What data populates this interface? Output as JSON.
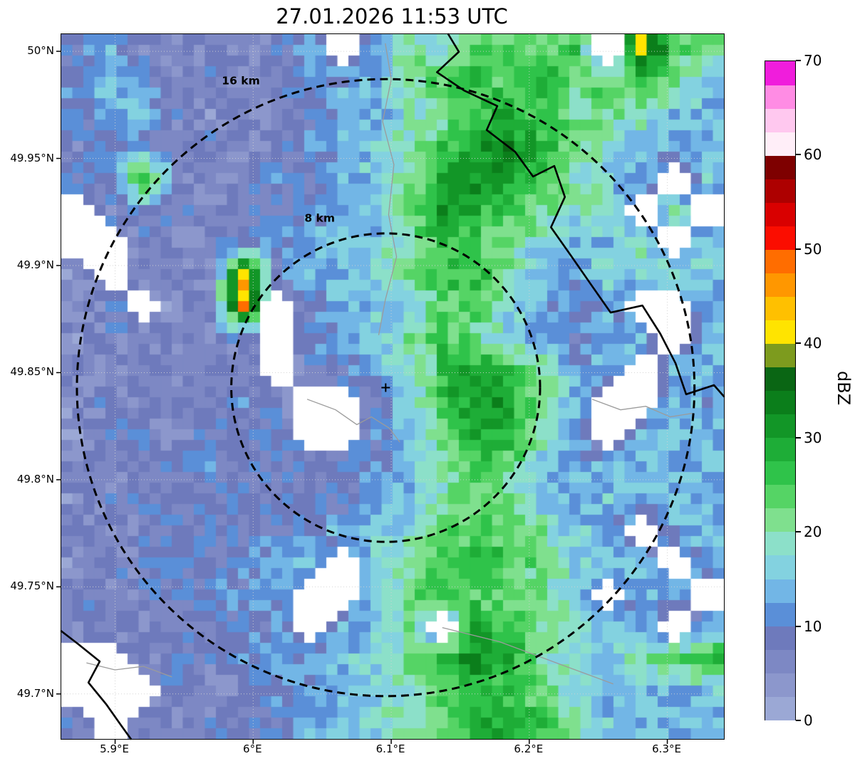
{
  "chart_data": {
    "type": "heatmap",
    "title": "27.01.2026 11:53 UTC",
    "units": "dBZ",
    "axes": {
      "lon_min": 5.861,
      "lon_max": 6.341,
      "lat_min": 49.679,
      "lat_max": 50.008,
      "x_ticks": [
        {
          "value": 5.9,
          "label": "5.9°E"
        },
        {
          "value": 6.0,
          "label": "6°E"
        },
        {
          "value": 6.1,
          "label": "6.1°E"
        },
        {
          "value": 6.2,
          "label": "6.2°E"
        },
        {
          "value": 6.3,
          "label": "6.3°E"
        }
      ],
      "y_ticks": [
        {
          "value": 50.0,
          "label": "50°N"
        },
        {
          "value": 49.95,
          "label": "49.95°N"
        },
        {
          "value": 49.9,
          "label": "49.9°N"
        },
        {
          "value": 49.85,
          "label": "49.85°N"
        },
        {
          "value": 49.8,
          "label": "49.8°N"
        },
        {
          "value": 49.75,
          "label": "49.75°N"
        },
        {
          "value": 49.7,
          "label": "49.7°N"
        }
      ]
    },
    "colorbar": {
      "label": "dBZ",
      "min": 0,
      "max": 70,
      "levels_step": 2.5,
      "tick_values": [
        0,
        10,
        20,
        30,
        40,
        50,
        60,
        70
      ],
      "tick_labels": [
        "0",
        "10",
        "20",
        "30",
        "40",
        "50",
        "60",
        "70"
      ],
      "colors": [
        "#9ba8d5",
        "#8c97cc",
        "#7d88c4",
        "#6e7abc",
        "#5a8fd8",
        "#72b6e6",
        "#83d2e0",
        "#8ce0c9",
        "#7fe08e",
        "#55d465",
        "#2fc34a",
        "#1ead37",
        "#129627",
        "#0b7e1b",
        "#0a6614",
        "#7d9b1e",
        "#ffe400",
        "#ffc000",
        "#ff9700",
        "#ff6d00",
        "#fb0d00",
        "#d90000",
        "#ad0000",
        "#7e0000",
        "#ffeef8",
        "#ffc8ef",
        "#ff8ce4",
        "#f01ddc"
      ],
      "no_data_color": "#ffffff"
    },
    "range_rings": {
      "center_lon": 6.096,
      "center_lat": 49.843,
      "center_marker": "+",
      "rings": [
        {
          "radius_km": 8,
          "label": "8 km",
          "label_pos": [
            0.39,
            0.261
          ]
        },
        {
          "radius_km": 16,
          "label": "16 km",
          "label_pos": [
            0.271,
            0.066
          ]
        }
      ]
    },
    "grid": {
      "cols": 20,
      "rows": 22,
      "no_data": -9,
      "values_dbz": [
        [
          8,
          13,
          8,
          5,
          8,
          5,
          8,
          13,
          -9,
          13,
          20,
          17,
          22,
          25,
          22,
          25,
          -9,
          40,
          25,
          22
        ],
        [
          12,
          15,
          10,
          5,
          8,
          5,
          8,
          10,
          13,
          15,
          20,
          25,
          28,
          22,
          28,
          22,
          25,
          25,
          20,
          15
        ],
        [
          10,
          13,
          15,
          8,
          5,
          8,
          5,
          10,
          13,
          13,
          17,
          22,
          25,
          28,
          25,
          20,
          22,
          20,
          15,
          13
        ],
        [
          8,
          10,
          10,
          5,
          8,
          5,
          8,
          10,
          13,
          15,
          20,
          25,
          30,
          32,
          28,
          22,
          17,
          15,
          13,
          15
        ],
        [
          8,
          10,
          30,
          8,
          5,
          8,
          10,
          8,
          13,
          15,
          22,
          28,
          32,
          30,
          25,
          20,
          15,
          13,
          -9,
          15
        ],
        [
          -9,
          8,
          10,
          8,
          5,
          8,
          8,
          10,
          13,
          15,
          22,
          30,
          28,
          25,
          22,
          17,
          20,
          -9,
          22,
          -9
        ],
        [
          -9,
          -9,
          8,
          5,
          8,
          10,
          10,
          13,
          15,
          15,
          20,
          25,
          25,
          20,
          17,
          13,
          15,
          20,
          -9,
          17
        ],
        [
          5,
          -9,
          8,
          8,
          5,
          42,
          10,
          13,
          15,
          17,
          22,
          25,
          28,
          22,
          13,
          13,
          17,
          15,
          20,
          15
        ],
        [
          5,
          8,
          -9,
          5,
          8,
          45,
          -9,
          10,
          13,
          15,
          17,
          22,
          25,
          17,
          13,
          10,
          13,
          -9,
          -9,
          13
        ],
        [
          5,
          8,
          5,
          8,
          5,
          8,
          -9,
          10,
          13,
          15,
          20,
          25,
          22,
          15,
          13,
          10,
          13,
          15,
          -9,
          13
        ],
        [
          8,
          5,
          8,
          5,
          8,
          8,
          -9,
          8,
          10,
          13,
          17,
          25,
          30,
          28,
          20,
          13,
          13,
          -9,
          13,
          15
        ],
        [
          5,
          8,
          5,
          8,
          8,
          10,
          8,
          -9,
          -9,
          10,
          15,
          25,
          32,
          30,
          22,
          15,
          -9,
          -9,
          13,
          13
        ],
        [
          5,
          8,
          8,
          5,
          8,
          8,
          10,
          -9,
          -9,
          10,
          13,
          22,
          30,
          28,
          20,
          13,
          -9,
          13,
          15,
          13
        ],
        [
          8,
          5,
          8,
          8,
          10,
          8,
          8,
          8,
          10,
          10,
          15,
          20,
          25,
          22,
          17,
          13,
          13,
          15,
          13,
          15
        ],
        [
          5,
          8,
          8,
          10,
          8,
          10,
          8,
          10,
          8,
          13,
          15,
          20,
          22,
          20,
          15,
          13,
          15,
          13,
          15,
          13
        ],
        [
          8,
          5,
          8,
          8,
          10,
          8,
          10,
          10,
          13,
          15,
          17,
          22,
          25,
          22,
          20,
          15,
          13,
          -9,
          13,
          15
        ],
        [
          5,
          8,
          8,
          10,
          8,
          10,
          13,
          15,
          -9,
          17,
          20,
          25,
          28,
          25,
          22,
          17,
          15,
          13,
          -9,
          13
        ],
        [
          8,
          5,
          8,
          8,
          10,
          10,
          13,
          -9,
          -9,
          17,
          22,
          28,
          25,
          22,
          20,
          17,
          -9,
          13,
          15,
          -9
        ],
        [
          8,
          8,
          5,
          8,
          8,
          10,
          10,
          -9,
          13,
          15,
          20,
          -9,
          30,
          25,
          22,
          20,
          15,
          13,
          -9,
          13
        ],
        [
          -9,
          -9,
          8,
          8,
          8,
          10,
          13,
          13,
          15,
          17,
          22,
          28,
          32,
          28,
          20,
          17,
          15,
          20,
          25,
          28
        ],
        [
          -9,
          -9,
          -9,
          8,
          5,
          8,
          10,
          13,
          13,
          15,
          20,
          25,
          28,
          25,
          22,
          17,
          13,
          15,
          13,
          15
        ],
        [
          8,
          -9,
          8,
          5,
          8,
          8,
          10,
          13,
          15,
          17,
          20,
          22,
          28,
          30,
          25,
          20,
          15,
          13,
          15,
          13
        ]
      ]
    },
    "map_lines": {
      "borders": [
        [
          [
            0.584,
            0.0
          ],
          [
            0.6,
            0.025
          ],
          [
            0.567,
            0.054
          ],
          [
            0.608,
            0.08
          ],
          [
            0.658,
            0.102
          ],
          [
            0.642,
            0.136
          ],
          [
            0.685,
            0.167
          ],
          [
            0.712,
            0.202
          ],
          [
            0.744,
            0.187
          ],
          [
            0.76,
            0.231
          ],
          [
            0.739,
            0.274
          ],
          [
            0.769,
            0.314
          ],
          [
            0.8,
            0.356
          ],
          [
            0.829,
            0.395
          ],
          [
            0.877,
            0.385
          ],
          [
            0.904,
            0.425
          ],
          [
            0.927,
            0.467
          ],
          [
            0.943,
            0.511
          ],
          [
            0.985,
            0.498
          ],
          [
            1.0,
            0.514
          ]
        ],
        [
          [
            0.0,
            0.847
          ],
          [
            0.025,
            0.865
          ],
          [
            0.058,
            0.89
          ],
          [
            0.041,
            0.92
          ],
          [
            0.068,
            0.951
          ],
          [
            0.089,
            0.979
          ],
          [
            0.105,
            1.0
          ]
        ]
      ],
      "rivers": [
        [
          [
            0.489,
            0.013
          ],
          [
            0.498,
            0.064
          ],
          [
            0.485,
            0.124
          ],
          [
            0.502,
            0.185
          ],
          [
            0.494,
            0.256
          ],
          [
            0.506,
            0.316
          ],
          [
            0.489,
            0.377
          ],
          [
            0.479,
            0.427
          ]
        ],
        [
          [
            0.371,
            0.518
          ],
          [
            0.414,
            0.533
          ],
          [
            0.446,
            0.554
          ],
          [
            0.468,
            0.543
          ],
          [
            0.495,
            0.559
          ],
          [
            0.511,
            0.579
          ]
        ],
        [
          [
            0.801,
            0.518
          ],
          [
            0.844,
            0.533
          ],
          [
            0.882,
            0.528
          ],
          [
            0.919,
            0.543
          ],
          [
            0.952,
            0.538
          ]
        ],
        [
          [
            0.038,
            0.892
          ],
          [
            0.081,
            0.902
          ],
          [
            0.124,
            0.897
          ],
          [
            0.167,
            0.912
          ]
        ],
        [
          [
            0.575,
            0.842
          ],
          [
            0.661,
            0.862
          ],
          [
            0.747,
            0.892
          ],
          [
            0.833,
            0.922
          ]
        ]
      ]
    }
  }
}
